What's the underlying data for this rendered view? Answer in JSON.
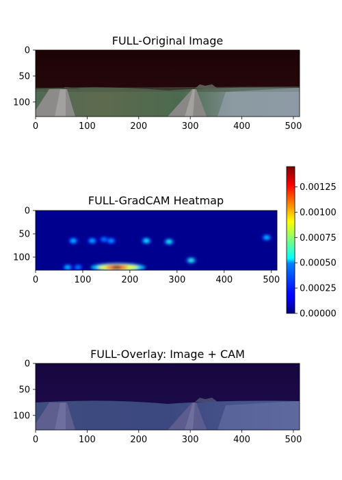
{
  "chart_data": [
    {
      "type": "image",
      "title": "FULL-Original Image",
      "xlim": [
        0,
        512
      ],
      "ylim": [
        128,
        0
      ],
      "xticks": [
        0,
        100,
        200,
        300,
        400,
        500
      ],
      "yticks": [
        0,
        50,
        100
      ],
      "content": "panoramic road scene: dark sky band above a horizon near y=75, two converging dirt roads centered near x=60 and x=305, green fields below",
      "horizon_y": 75,
      "road_centers_x": [
        60,
        305
      ]
    },
    {
      "type": "heatmap",
      "title": "FULL-GradCAM Heatmap",
      "xlim": [
        0,
        512
      ],
      "ylim": [
        128,
        0
      ],
      "xticks": [
        0,
        100,
        200,
        300,
        400,
        500
      ],
      "yticks": [
        0,
        50,
        100
      ],
      "colormap": "jet",
      "colorbar": {
        "min": 0.0,
        "max": 0.00145,
        "ticks": [
          0.0,
          0.00025,
          0.0005,
          0.00075,
          0.001,
          0.00125
        ],
        "tick_labels": [
          "0.00000",
          "0.00025",
          "0.00050",
          "0.00075",
          "0.00100",
          "0.00125"
        ]
      },
      "hotspots": [
        {
          "x": 80,
          "y": 65,
          "value": 0.0003
        },
        {
          "x": 120,
          "y": 65,
          "value": 0.00028
        },
        {
          "x": 145,
          "y": 62,
          "value": 0.0002
        },
        {
          "x": 160,
          "y": 65,
          "value": 0.00025
        },
        {
          "x": 235,
          "y": 65,
          "value": 0.00038
        },
        {
          "x": 283,
          "y": 67,
          "value": 0.00042
        },
        {
          "x": 330,
          "y": 107,
          "value": 0.00045
        },
        {
          "x": 490,
          "y": 58,
          "value": 0.0003
        },
        {
          "x": 68,
          "y": 122,
          "value": 0.0003
        },
        {
          "x": 90,
          "y": 122,
          "value": 0.0002
        },
        {
          "x": 175,
          "y": 122,
          "value": 0.00145
        }
      ]
    },
    {
      "type": "image",
      "title": "FULL-Overlay: Image + CAM",
      "xlim": [
        0,
        512
      ],
      "ylim": [
        128,
        0
      ],
      "xticks": [
        0,
        100,
        200,
        300,
        400,
        500
      ],
      "yticks": [
        0,
        50,
        100
      ],
      "content": "original image blended with blue-tinted CAM overlay"
    }
  ]
}
